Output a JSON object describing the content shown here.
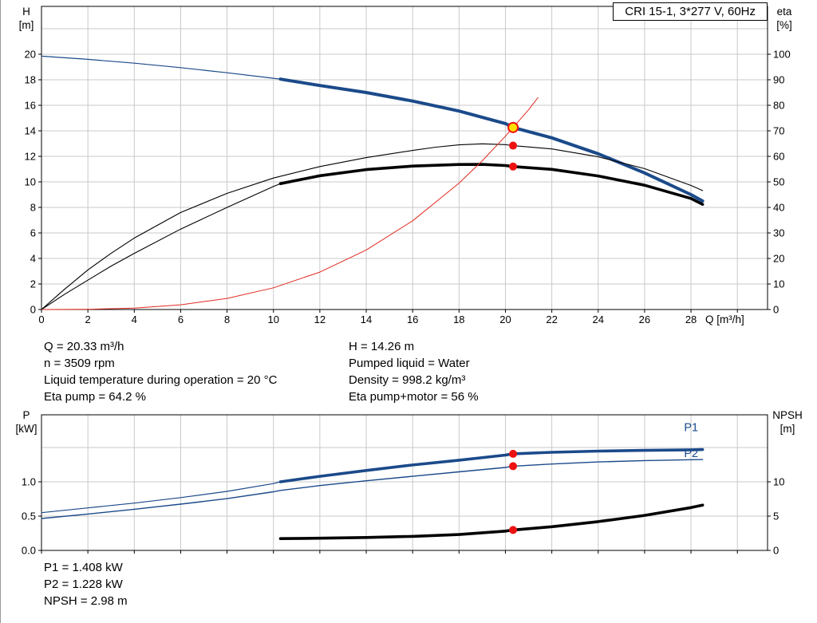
{
  "title_box": {
    "text": "CRI 15-1, 3*277 V, 60Hz"
  },
  "info_top": {
    "left": [
      "Q = 20.33 m³/h",
      "n = 3509 rpm",
      "Liquid temperature during operation = 20 °C",
      "Eta pump = 64.2 %"
    ],
    "right": [
      "H = 14.26 m",
      "Pumped liquid = Water",
      "Density = 998.2 kg/m³",
      "Eta pump+motor = 56 %"
    ]
  },
  "info_bottom": [
    "P1 = 1.408 kW",
    "P2 = 1.228 kW",
    "NPSH = 2.98 m"
  ],
  "colors": {
    "curve_blue": "#1b4a8a",
    "curve_black": "#000000",
    "curve_red": "#e02a20",
    "marker_red": "#ee1111",
    "duty_yellow": "#ffdf00",
    "grid": "#c9c9c9"
  },
  "chart_data": [
    {
      "type": "line",
      "title": "CRI 15-1, 3*277 V, 60Hz",
      "x_axis": {
        "label": "Q [m³/h]",
        "min": 0,
        "max": 31.3,
        "grid": [
          2,
          4,
          6,
          8,
          10,
          12,
          14,
          16,
          18,
          20,
          22,
          24,
          26,
          28,
          30
        ],
        "ticks": [
          [
            0,
            "0"
          ],
          [
            2,
            "2"
          ],
          [
            4,
            "4"
          ],
          [
            6,
            "6"
          ],
          [
            8,
            "8"
          ],
          [
            10,
            "10"
          ],
          [
            12,
            "12"
          ],
          [
            14,
            "14"
          ],
          [
            16,
            "16"
          ],
          [
            18,
            "18"
          ],
          [
            20,
            "20"
          ],
          [
            22,
            "22"
          ],
          [
            24,
            "24"
          ],
          [
            26,
            "26"
          ],
          [
            28,
            "28"
          ],
          [
            30,
            ""
          ]
        ]
      },
      "left_axis": {
        "title": [
          "H",
          "[m]"
        ],
        "min": 0,
        "max": 23.75,
        "grid": [
          2,
          4,
          6,
          8,
          10,
          12,
          14,
          16,
          18,
          20,
          22
        ],
        "ticks": [
          [
            0,
            "0"
          ],
          [
            2,
            "2"
          ],
          [
            4,
            "4"
          ],
          [
            6,
            "6"
          ],
          [
            8,
            "8"
          ],
          [
            10,
            "10"
          ],
          [
            12,
            "12"
          ],
          [
            14,
            "14"
          ],
          [
            16,
            "16"
          ],
          [
            18,
            "18"
          ],
          [
            20,
            "20"
          ]
        ]
      },
      "right_axis": {
        "title": [
          "eta",
          "[%]"
        ],
        "min": 0,
        "max": 118.75,
        "ticks": [
          [
            0,
            "0"
          ],
          [
            10,
            "10"
          ],
          [
            20,
            "20"
          ],
          [
            30,
            "30"
          ],
          [
            40,
            "40"
          ],
          [
            50,
            "50"
          ],
          [
            60,
            "60"
          ],
          [
            70,
            "70"
          ],
          [
            80,
            "80"
          ],
          [
            90,
            "90"
          ],
          [
            100,
            "100"
          ]
        ]
      },
      "series": [
        {
          "name": "pump-hq-thin",
          "axis": "left",
          "color": "#1b4a8a",
          "width": 1.2,
          "pts": [
            [
              0,
              19.85
            ],
            [
              2,
              19.6
            ],
            [
              4,
              19.3
            ],
            [
              6,
              18.95
            ],
            [
              8,
              18.55
            ],
            [
              10,
              18.12
            ],
            [
              10.3,
              18.05
            ]
          ]
        },
        {
          "name": "pump-hq",
          "axis": "left",
          "color": "#1b4a8a",
          "width": 4,
          "pts": [
            [
              10.3,
              18.05
            ],
            [
              12,
              17.55
            ],
            [
              14,
              17.0
            ],
            [
              16,
              16.33
            ],
            [
              18,
              15.55
            ],
            [
              20,
              14.57
            ],
            [
              20.33,
              14.26
            ],
            [
              22,
              13.45
            ],
            [
              24,
              12.2
            ],
            [
              26,
              10.7
            ],
            [
              28,
              9.0
            ],
            [
              28.5,
              8.5
            ]
          ]
        },
        {
          "name": "eta-pump",
          "axis": "right",
          "color": "#000000",
          "width": 1.1,
          "pts": [
            [
              0,
              0
            ],
            [
              1,
              8
            ],
            [
              2,
              15.5
            ],
            [
              3,
              22
            ],
            [
              4,
              28
            ],
            [
              6,
              38
            ],
            [
              8,
              45.5
            ],
            [
              10,
              51.5
            ],
            [
              12,
              56
            ],
            [
              14,
              59.5
            ],
            [
              16,
              62.3
            ],
            [
              17,
              63.6
            ],
            [
              18,
              64.5
            ],
            [
              19,
              64.9
            ],
            [
              20,
              64.6
            ],
            [
              20.33,
              64.2
            ],
            [
              22,
              62.9
            ],
            [
              24,
              59.8
            ],
            [
              26,
              55.2
            ],
            [
              28,
              48.6
            ],
            [
              28.5,
              46.6
            ]
          ]
        },
        {
          "name": "eta-pump-motor-thin",
          "axis": "right",
          "color": "#000000",
          "width": 1.1,
          "pts": [
            [
              0,
              0
            ],
            [
              1,
              6
            ],
            [
              2,
              11.5
            ],
            [
              3,
              17
            ],
            [
              4,
              22
            ],
            [
              6,
              31.5
            ],
            [
              8,
              40
            ],
            [
              10,
              48.2
            ],
            [
              10.3,
              49.3
            ]
          ]
        },
        {
          "name": "eta-pump-motor",
          "axis": "right",
          "color": "#000000",
          "width": 3.6,
          "pts": [
            [
              10.3,
              49.3
            ],
            [
              12,
              52.4
            ],
            [
              14,
              54.8
            ],
            [
              16,
              56.2
            ],
            [
              18,
              56.8
            ],
            [
              19,
              56.85
            ],
            [
              20,
              56.4
            ],
            [
              20.33,
              56.0
            ],
            [
              22,
              54.9
            ],
            [
              24,
              52.3
            ],
            [
              26,
              48.7
            ],
            [
              28,
              43.5
            ],
            [
              28.5,
              41.2
            ]
          ]
        },
        {
          "name": "speed-curve",
          "axis": "left",
          "color": "#e02a20",
          "width": 1,
          "pts": [
            [
              0,
              0
            ],
            [
              2,
              0.02
            ],
            [
              4,
              0.11
            ],
            [
              6,
              0.37
            ],
            [
              8,
              0.87
            ],
            [
              10,
              1.7
            ],
            [
              12,
              2.93
            ],
            [
              14,
              4.66
            ],
            [
              16,
              6.95
            ],
            [
              18,
              9.9
            ],
            [
              19,
              11.65
            ],
            [
              20,
              13.58
            ],
            [
              20.33,
              14.26
            ],
            [
              21,
              15.65
            ],
            [
              21.4,
              16.6
            ]
          ]
        }
      ],
      "markers": [
        {
          "type": "dot",
          "x": 20.33,
          "y": 64.2,
          "axis": "right"
        },
        {
          "type": "dot",
          "x": 20.33,
          "y": 56.0,
          "axis": "right"
        },
        {
          "type": "duty",
          "x": 20.33,
          "y": 14.26,
          "axis": "left"
        }
      ],
      "labels": []
    },
    {
      "type": "line",
      "x_axis": {
        "label": "",
        "min": 0,
        "max": 31.3,
        "grid": [
          2,
          4,
          6,
          8,
          10,
          12,
          14,
          16,
          18,
          20,
          22,
          24,
          26,
          28,
          30
        ],
        "ticks": [
          [
            0,
            ""
          ],
          [
            2,
            ""
          ],
          [
            4,
            ""
          ],
          [
            6,
            ""
          ],
          [
            8,
            ""
          ],
          [
            10,
            ""
          ],
          [
            12,
            ""
          ],
          [
            14,
            ""
          ],
          [
            16,
            ""
          ],
          [
            18,
            ""
          ],
          [
            20,
            ""
          ],
          [
            22,
            ""
          ],
          [
            24,
            ""
          ],
          [
            26,
            ""
          ],
          [
            28,
            ""
          ],
          [
            30,
            ""
          ]
        ]
      },
      "left_axis": {
        "title": [
          "P",
          "[kW]"
        ],
        "min": 0,
        "max": 1.977,
        "grid": [
          0.5,
          1.0,
          1.5
        ],
        "ticks": [
          [
            0,
            "0.0"
          ],
          [
            0.5,
            "0.5"
          ],
          [
            1,
            "1.0"
          ]
        ]
      },
      "right_axis": {
        "title": [
          "NPSH",
          "[m]"
        ],
        "min": 0,
        "max": 19.77,
        "ticks": [
          [
            0,
            "0"
          ],
          [
            5,
            "5"
          ],
          [
            10,
            "10"
          ]
        ]
      },
      "series": [
        {
          "name": "p1-thin",
          "axis": "left",
          "color": "#1b4a8a",
          "width": 1.2,
          "pts": [
            [
              0,
              0.55
            ],
            [
              2,
              0.62
            ],
            [
              4,
              0.69
            ],
            [
              6,
              0.77
            ],
            [
              8,
              0.86
            ],
            [
              10,
              0.975
            ],
            [
              10.3,
              1.0
            ]
          ]
        },
        {
          "name": "p1",
          "axis": "left",
          "color": "#1b4a8a",
          "width": 3.6,
          "pts": [
            [
              10.3,
              1.0
            ],
            [
              12,
              1.08
            ],
            [
              14,
              1.165
            ],
            [
              16,
              1.245
            ],
            [
              18,
              1.315
            ],
            [
              20,
              1.39
            ],
            [
              20.33,
              1.408
            ],
            [
              22,
              1.43
            ],
            [
              24,
              1.448
            ],
            [
              26,
              1.458
            ],
            [
              28,
              1.467
            ],
            [
              28.5,
              1.47
            ]
          ]
        },
        {
          "name": "p2",
          "axis": "left",
          "color": "#1b4a8a",
          "width": 1.4,
          "pts": [
            [
              0,
              0.465
            ],
            [
              2,
              0.53
            ],
            [
              4,
              0.6
            ],
            [
              6,
              0.675
            ],
            [
              8,
              0.755
            ],
            [
              10,
              0.855
            ],
            [
              10.3,
              0.875
            ],
            [
              12,
              0.945
            ],
            [
              14,
              1.015
            ],
            [
              16,
              1.08
            ],
            [
              18,
              1.145
            ],
            [
              20,
              1.21
            ],
            [
              20.33,
              1.228
            ],
            [
              22,
              1.26
            ],
            [
              24,
              1.29
            ],
            [
              26,
              1.31
            ],
            [
              28,
              1.322
            ],
            [
              28.5,
              1.325
            ]
          ]
        },
        {
          "name": "npsh",
          "axis": "right",
          "color": "#000000",
          "width": 3.6,
          "pts": [
            [
              10.3,
              1.72
            ],
            [
              12,
              1.78
            ],
            [
              14,
              1.88
            ],
            [
              16,
              2.05
            ],
            [
              18,
              2.32
            ],
            [
              20,
              2.82
            ],
            [
              20.33,
              2.98
            ],
            [
              22,
              3.45
            ],
            [
              24,
              4.2
            ],
            [
              26,
              5.1
            ],
            [
              28,
              6.25
            ],
            [
              28.5,
              6.6
            ]
          ]
        }
      ],
      "markers": [
        {
          "type": "dot",
          "x": 20.33,
          "y": 1.408,
          "axis": "left"
        },
        {
          "type": "dot",
          "x": 20.33,
          "y": 1.228,
          "axis": "left"
        },
        {
          "type": "dot",
          "x": 20.33,
          "y": 2.98,
          "axis": "right"
        }
      ],
      "labels": [
        {
          "t": "P1",
          "x": 27.7,
          "y": 1.74,
          "axis": "left",
          "color": "#1b4a8a"
        },
        {
          "t": "P2",
          "x": 27.7,
          "y": 1.36,
          "axis": "left",
          "color": "#1b4a8a"
        }
      ]
    }
  ]
}
